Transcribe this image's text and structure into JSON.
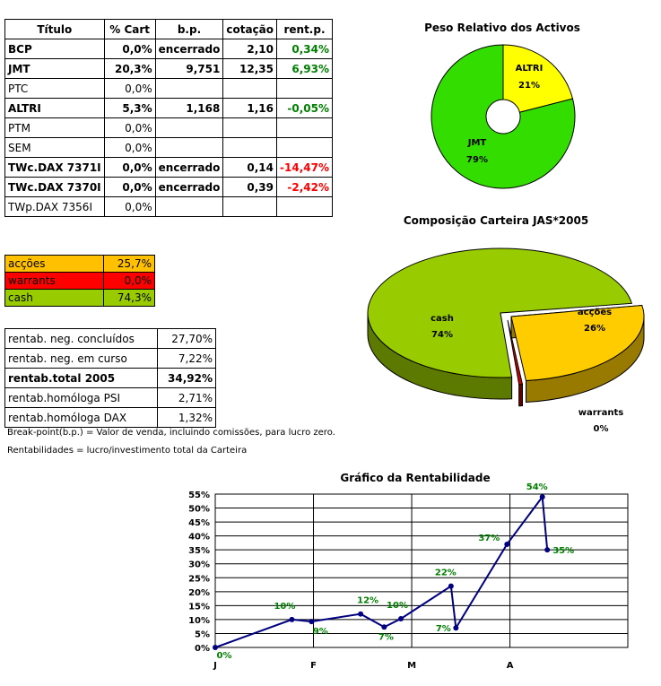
{
  "titles_table": {
    "headers": [
      "Título",
      "% Cart",
      "b.p.",
      "cotação",
      "rent.p."
    ],
    "rows": [
      {
        "titulo": "BCP",
        "pct": "0,0%",
        "bp": "encerrado",
        "cot": "2,10",
        "rent": "0,34%",
        "bold": true,
        "rent_class": "pos"
      },
      {
        "titulo": "JMT",
        "pct": "20,3%",
        "bp": "9,751",
        "cot": "12,35",
        "rent": "6,93%",
        "bold": true,
        "rent_class": "pos"
      },
      {
        "titulo": "PTC",
        "pct": "0,0%",
        "bp": "",
        "cot": "",
        "rent": "",
        "bold": false,
        "rent_class": ""
      },
      {
        "titulo": "ALTRI",
        "pct": "5,3%",
        "bp": "1,168",
        "cot": "1,16",
        "rent": "-0,05%",
        "bold": true,
        "rent_class": "pos"
      },
      {
        "titulo": "PTM",
        "pct": "0,0%",
        "bp": "",
        "cot": "",
        "rent": "",
        "bold": false,
        "rent_class": ""
      },
      {
        "titulo": "SEM",
        "pct": "0,0%",
        "bp": "",
        "cot": "",
        "rent": "",
        "bold": false,
        "rent_class": ""
      },
      {
        "titulo": "TWc.DAX 7371I",
        "pct": "0,0%",
        "bp": "encerrado",
        "cot": "0,14",
        "rent": "-14,47%",
        "bold": true,
        "rent_class": "neg"
      },
      {
        "titulo": "TWc.DAX 7370I",
        "pct": "0,0%",
        "bp": "encerrado",
        "cot": "0,39",
        "rent": "-2,42%",
        "bold": true,
        "rent_class": "neg"
      },
      {
        "titulo": "TWp.DAX 7356I",
        "pct": "0,0%",
        "bp": "",
        "cot": "",
        "rent": "",
        "bold": false,
        "rent_class": ""
      }
    ]
  },
  "allocation_table": {
    "rows": [
      {
        "label": "acções",
        "value": "25,7%",
        "color": "#ffc000"
      },
      {
        "label": "warrants",
        "value": "0,0%",
        "color": "#ff0000"
      },
      {
        "label": "cash",
        "value": "74,3%",
        "color": "#99cc00"
      }
    ]
  },
  "rentab_table": {
    "rows": [
      {
        "label": "rentab. neg. concluídos",
        "value": "27,70%",
        "bold": false
      },
      {
        "label": "rentab. neg. em curso",
        "value": "7,22%",
        "bold": false
      },
      {
        "label": "rentab.total 2005",
        "value": "34,92%",
        "bold": true
      },
      {
        "label": "rentab.homóloga PSI",
        "value": "2,71%",
        "bold": false
      },
      {
        "label": "rentab.homóloga DAX",
        "value": "1,32%",
        "bold": false
      }
    ]
  },
  "notes": {
    "bp_note": "Break-point(b.p.) = Valor de venda, incluindo comissões, para lucro zero.",
    "rent_note": "Rentabilidades = lucro/investimento total da Carteira"
  },
  "colors": {
    "jmt": "#33dd00",
    "altri": "#ffff00",
    "accoes": "#ffcc00",
    "warrants": "#990000",
    "cash": "#99cc00",
    "line": "#000080",
    "label_green": "#008000"
  },
  "chart_data": [
    {
      "type": "pie",
      "title": "Peso Relativo dos Activos",
      "slices": [
        {
          "label": "ALTRI",
          "value": 21,
          "value_label": "21%"
        },
        {
          "label": "JMT",
          "value": 79,
          "value_label": "79%"
        }
      ]
    },
    {
      "type": "pie",
      "title": "Composição Carteira JAS*2005",
      "slices": [
        {
          "label": "acções",
          "value": 26,
          "value_label": "26%"
        },
        {
          "label": "warrants",
          "value": 0,
          "value_label": "0%"
        },
        {
          "label": "cash",
          "value": 74,
          "value_label": "74%"
        }
      ]
    },
    {
      "type": "line",
      "title": "Gráfico da Rentabilidade",
      "x_ticks": [
        "J",
        "F",
        "M",
        "A"
      ],
      "y_ticks": [
        "0%",
        "5%",
        "10%",
        "15%",
        "20%",
        "25%",
        "30%",
        "35%",
        "40%",
        "45%",
        "50%",
        "55%"
      ],
      "ylim": [
        0,
        55
      ],
      "x_range": [
        0,
        4.2
      ],
      "points": [
        {
          "x": 0.0,
          "y": 0,
          "label": "0%"
        },
        {
          "x": 0.78,
          "y": 10,
          "label": "10%"
        },
        {
          "x": 0.98,
          "y": 9.3,
          "label": "9%"
        },
        {
          "x": 1.48,
          "y": 12,
          "label": "12%"
        },
        {
          "x": 1.72,
          "y": 7.3,
          "label": "7%"
        },
        {
          "x": 1.89,
          "y": 10.3,
          "label": "10%"
        },
        {
          "x": 2.4,
          "y": 22,
          "label": "22%"
        },
        {
          "x": 2.45,
          "y": 7,
          "label": "7%"
        },
        {
          "x": 2.97,
          "y": 37,
          "label": "37%"
        },
        {
          "x": 3.33,
          "y": 54,
          "label": "54%"
        },
        {
          "x": 3.38,
          "y": 35,
          "label": "35%"
        }
      ]
    }
  ]
}
